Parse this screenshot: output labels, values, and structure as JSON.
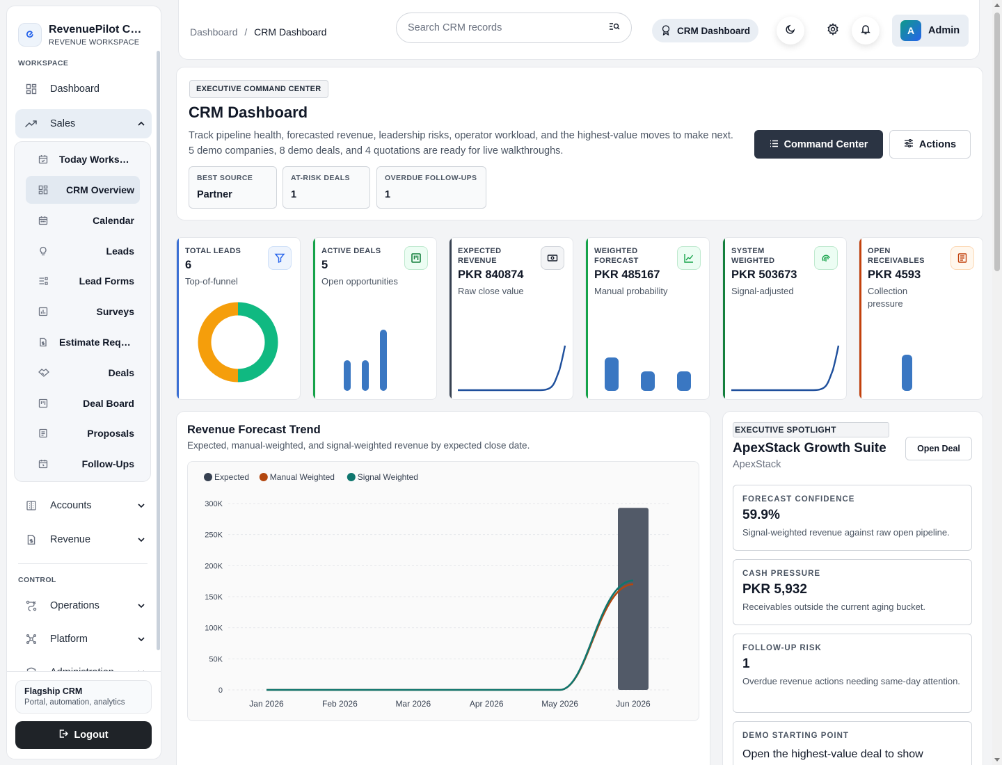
{
  "brand": {
    "name": "RevenuePilot CRM",
    "subtitle": "REVENUE WORKSPACE"
  },
  "sidebar": {
    "workspace_label": "WORKSPACE",
    "control_label": "CONTROL",
    "dashboard": "Dashboard",
    "sales": "Sales",
    "sales_items": [
      "Today Workspace",
      "CRM Overview",
      "Calendar",
      "Leads",
      "Lead Forms",
      "Surveys",
      "Estimate Requests",
      "Deals",
      "Deal Board",
      "Proposals",
      "Follow-Ups"
    ],
    "accounts": "Accounts",
    "revenue": "Revenue",
    "operations": "Operations",
    "platform": "Platform",
    "administration": "Administration",
    "footer_title": "Flagship CRM",
    "footer_sub": "Portal, automation, analytics",
    "logout": "Logout"
  },
  "header": {
    "crumb_root": "Dashboard",
    "crumb_sep": "/",
    "crumb_current": "CRM Dashboard",
    "search_placeholder": "Search CRM records",
    "pill_label": "CRM Dashboard",
    "avatar_letter": "A",
    "user": "Admin"
  },
  "hero": {
    "eyebrow": "EXECUTIVE COMMAND CENTER",
    "title": "CRM Dashboard",
    "description": "Track pipeline health, forecasted revenue, leadership risks, operator workload, and the highest-value moves to make next. 5 demo companies, 8 demo deals, and 4 quotations are ready for live walkthroughs.",
    "stats": [
      {
        "label": "BEST SOURCE",
        "value": "Partner"
      },
      {
        "label": "AT-RISK DEALS",
        "value": "1"
      },
      {
        "label": "OVERDUE FOLLOW-UPS",
        "value": "1"
      }
    ],
    "primary_button": "Command Center",
    "secondary_button": "Actions"
  },
  "kpis": [
    {
      "label": "TOTAL LEADS",
      "value": "6",
      "sub": "Top-of-funnel",
      "color": "#3b6fd4",
      "icon": "filter-icon",
      "viz": {
        "type": "donut",
        "segments": [
          0.5,
          0.5
        ],
        "colors": [
          "#10b981",
          "#f59e0b"
        ]
      }
    },
    {
      "label": "ACTIVE DEALS",
      "value": "5",
      "sub": "Open opportunities",
      "color": "#16a34a",
      "icon": "kanban-icon",
      "viz": {
        "type": "bars",
        "values": [
          1,
          1,
          2
        ]
      }
    },
    {
      "label": "EXPECTED REVENUE",
      "value": "PKR 840874",
      "sub": "Raw close value",
      "color": "#374151",
      "icon": "cash-icon",
      "viz": {
        "type": "line"
      }
    },
    {
      "label": "WEIGHTED FORECAST",
      "value": "PKR 485167",
      "sub": "Manual probability",
      "color": "#16a34a",
      "icon": "chart-line-icon",
      "viz": {
        "type": "bars",
        "values": [
          2,
          1,
          1
        ]
      }
    },
    {
      "label": "SYSTEM WEIGHTED",
      "value": "PKR 503673",
      "sub": "Signal-adjusted",
      "color": "#15803d",
      "icon": "fingerprint-icon",
      "viz": {
        "type": "line"
      }
    },
    {
      "label": "OPEN RECEIVABLES",
      "value": "PKR 4593",
      "sub": "Collection pressure",
      "color": "#c2410c",
      "icon": "receipt-icon",
      "viz": {
        "type": "bars",
        "values": [
          1
        ]
      }
    }
  ],
  "forecast": {
    "title": "Revenue Forecast Trend",
    "subtitle": "Expected, manual-weighted, and signal-weighted revenue by expected close date.",
    "chart_data": {
      "type": "line",
      "categories": [
        "Jan 2026",
        "Feb 2026",
        "Mar 2026",
        "Apr 2026",
        "May 2026",
        "Jun 2026"
      ],
      "series": [
        {
          "name": "Expected",
          "color": "#374151",
          "render": "bar",
          "values": [
            0,
            0,
            0,
            0,
            0,
            293000
          ]
        },
        {
          "name": "Manual Weighted",
          "color": "#b3470f",
          "render": "line",
          "values": [
            0,
            0,
            0,
            0,
            0,
            170000
          ]
        },
        {
          "name": "Signal Weighted",
          "color": "#0f766e",
          "render": "line",
          "values": [
            0,
            0,
            0,
            0,
            0,
            176000
          ]
        }
      ],
      "yticks": [
        "0",
        "50K",
        "100K",
        "150K",
        "200K",
        "250K",
        "300K"
      ],
      "ylim": [
        0,
        300000
      ],
      "grid": true,
      "legend": "top-left"
    }
  },
  "spotlight": {
    "eyebrow": "EXECUTIVE SPOTLIGHT",
    "title": "ApexStack Growth Suite",
    "company": "ApexStack",
    "button": "Open Deal",
    "blocks": [
      {
        "label": "FORECAST CONFIDENCE",
        "value": "59.9%",
        "desc": "Signal-weighted revenue against raw open pipeline."
      },
      {
        "label": "CASH PRESSURE",
        "value": "PKR 5,932",
        "desc": "Receivables outside the current aging bucket."
      },
      {
        "label": "FOLLOW-UP RISK",
        "value": "1",
        "desc": "Overdue revenue actions needing same-day attention."
      },
      {
        "label": "DEMO STARTING POINT",
        "value": "",
        "desc": "Open the highest-value deal to show"
      }
    ]
  }
}
